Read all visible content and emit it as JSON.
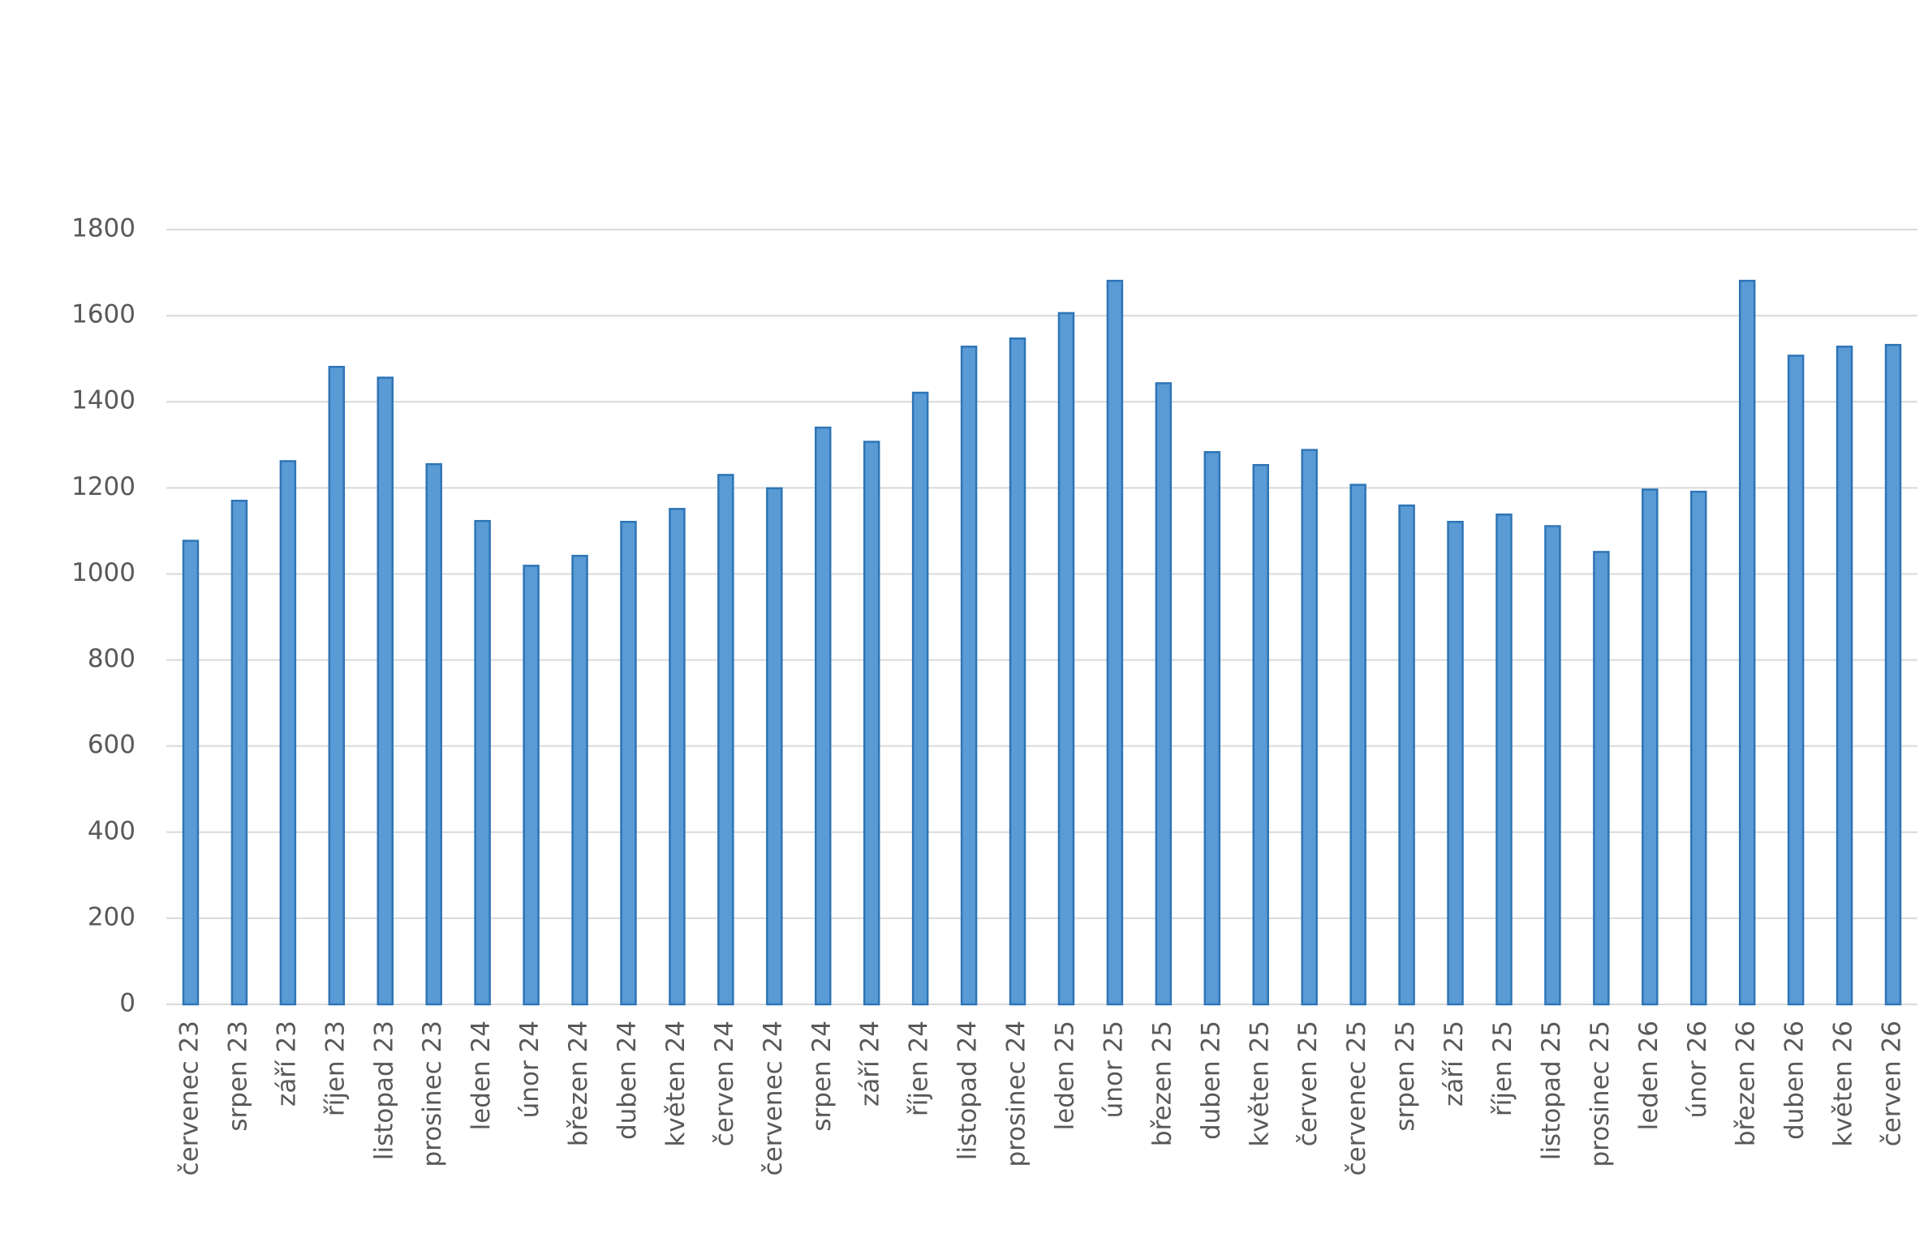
{
  "chart_data": {
    "type": "bar",
    "categories": [
      "červenec 23",
      "srpen 23",
      "září 23",
      "říjen 23",
      "listopad 23",
      "prosinec 23",
      "leden 24",
      "únor 24",
      "březen 24",
      "duben 24",
      "květen 24",
      "červen 24",
      "červenec 24",
      "srpen 24",
      "září 24",
      "říjen 24",
      "listopad 24",
      "prosinec 24",
      "leden 25",
      "únor 25",
      "březen 25",
      "duben 25",
      "květen 25",
      "červen 25",
      "červenec 25",
      "srpen 25",
      "září 25",
      "říjen 25",
      "listopad 25",
      "prosinec 25",
      "leden 26",
      "únor 26",
      "březen 26",
      "duben 26",
      "květen 26",
      "červen 26"
    ],
    "values": [
      1077,
      1170,
      1262,
      1481,
      1456,
      1255,
      1123,
      1019,
      1042,
      1121,
      1151,
      1230,
      1199,
      1340,
      1307,
      1421,
      1528,
      1547,
      1606,
      1681,
      1443,
      1283,
      1253,
      1288,
      1207,
      1159,
      1121,
      1138,
      1111,
      1051,
      1196,
      1191,
      1681,
      1507,
      1528,
      1532
    ],
    "color": "#5b9bd5",
    "ylim": [
      0,
      1800
    ],
    "yticks": [
      0,
      200,
      400,
      600,
      800,
      1000,
      1200,
      1400,
      1600,
      1800
    ],
    "grid": true
  }
}
